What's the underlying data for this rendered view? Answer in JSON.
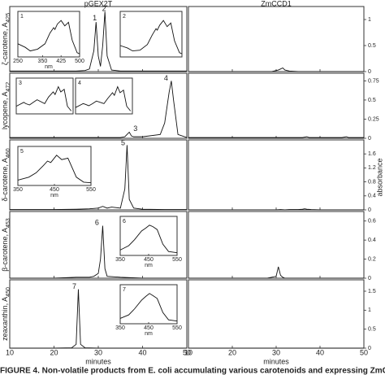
{
  "panels": [
    "pGEX2T",
    "ZmCCD1"
  ],
  "xlabel": "minutes",
  "y2label": "absorbance",
  "caption": "FIGURE 4. Non-volatile products from E. coli accumulating various carotenoids and expressing ZmCCD1",
  "chart_data": [
    {
      "type": "line",
      "ylabel": "ζ-carotene, A",
      "ylabel_sub": "425",
      "xlim": [
        10,
        50
      ],
      "xticks": [
        10,
        20,
        30,
        40,
        50
      ],
      "ylim": [
        0,
        1.25
      ],
      "yticks": [
        0,
        0.5,
        1
      ],
      "x": [
        10,
        15,
        20,
        25,
        27,
        28,
        29,
        29.5,
        30,
        30.5,
        31,
        31.5,
        32,
        33,
        35,
        40,
        45,
        50
      ],
      "series": [
        {
          "color": "#111111",
          "values": [
            0.01,
            0.01,
            0.01,
            0.01,
            0.02,
            0.05,
            0.4,
            0.95,
            0.3,
            0.1,
            0.5,
            1.15,
            0.3,
            0.03,
            0.01,
            0.01,
            0.01,
            0.01
          ]
        },
        {
          "color": "#111111",
          "values": [
            0,
            0,
            0,
            0,
            0,
            0,
            0,
            0.01,
            0.02,
            0.03,
            0.05,
            0.07,
            0.03,
            0.01,
            0,
            0,
            0,
            0
          ]
        }
      ],
      "peaks": [
        {
          "label": "1",
          "x": 29.2,
          "y": 1.02
        },
        {
          "label": "2",
          "x": 31.3,
          "y": 1.2
        }
      ],
      "insets": [
        {
          "label": "1",
          "xlim": [
            250,
            500
          ],
          "ylim": [
            0,
            1
          ],
          "xticks": [
            250,
            350,
            425,
            500
          ],
          "xlabel": "nm",
          "x": [
            250,
            280,
            300,
            330,
            360,
            380,
            395,
            400,
            410,
            425,
            440,
            455,
            470,
            490,
            500
          ],
          "values": [
            0.3,
            0.2,
            0.1,
            0.15,
            0.3,
            0.6,
            0.75,
            0.7,
            0.85,
            0.95,
            0.8,
            0.9,
            0.4,
            0.05,
            0.02
          ]
        },
        {
          "label": "2",
          "xlim": [
            250,
            500
          ],
          "ylim": [
            0,
            1
          ],
          "x": [
            250,
            280,
            300,
            330,
            360,
            380,
            395,
            400,
            410,
            425,
            440,
            455,
            470,
            490,
            500
          ],
          "values": [
            0.25,
            0.18,
            0.1,
            0.12,
            0.28,
            0.55,
            0.72,
            0.68,
            0.82,
            0.95,
            0.78,
            0.88,
            0.38,
            0.05,
            0.02
          ]
        }
      ]
    },
    {
      "type": "line",
      "ylabel": "lycopene, A",
      "ylabel_sub": "472",
      "xlim": [
        10,
        50
      ],
      "xticks": [
        10,
        20,
        30,
        40,
        50
      ],
      "ylim": [
        0,
        0.85
      ],
      "yticks": [
        0,
        0.25,
        0.5,
        0.75
      ],
      "x": [
        10,
        15,
        20,
        25,
        30,
        35,
        36,
        37,
        37.5,
        38,
        40,
        44,
        45,
        46,
        46.5,
        47,
        48,
        50
      ],
      "series": [
        {
          "color": "#111111",
          "values": [
            0.01,
            0.01,
            0.01,
            0.01,
            0.01,
            0.01,
            0.02,
            0.08,
            0.03,
            0.02,
            0.02,
            0.05,
            0.2,
            0.6,
            0.75,
            0.5,
            0.05,
            0.01
          ]
        },
        {
          "color": "#111111",
          "values": [
            0.01,
            0.01,
            0.01,
            0.01,
            0.01,
            0.01,
            0.01,
            0.02,
            0.01,
            0.01,
            0.01,
            0.01,
            0.01,
            0.02,
            0.01,
            0.01,
            0.01,
            0.01
          ]
        }
      ],
      "peaks": [
        {
          "label": "4",
          "x": 45.3,
          "y": 0.78
        },
        {
          "label": "3",
          "x": 38.4,
          "y": 0.12
        }
      ],
      "insets": [
        {
          "label": "3",
          "xlim": [
            250,
            550
          ],
          "ylim": [
            0,
            1
          ],
          "x": [
            250,
            290,
            300,
            320,
            340,
            360,
            400,
            420,
            445,
            455,
            472,
            485,
            503,
            520,
            540
          ],
          "values": [
            0.2,
            0.35,
            0.3,
            0.25,
            0.35,
            0.45,
            0.3,
            0.55,
            0.75,
            0.65,
            0.95,
            0.75,
            0.85,
            0.2,
            0.02
          ]
        },
        {
          "label": "4",
          "xlim": [
            250,
            550
          ],
          "ylim": [
            0,
            1
          ],
          "x": [
            250,
            290,
            300,
            320,
            340,
            360,
            400,
            420,
            445,
            455,
            472,
            485,
            503,
            520,
            540
          ],
          "values": [
            0.15,
            0.3,
            0.28,
            0.22,
            0.3,
            0.4,
            0.3,
            0.5,
            0.72,
            0.62,
            0.95,
            0.72,
            0.82,
            0.2,
            0.02
          ]
        }
      ]
    },
    {
      "type": "line",
      "ylabel": "δ-carotene, A",
      "ylabel_sub": "460",
      "xlim": [
        10,
        50
      ],
      "xticks": [
        10,
        20,
        30,
        40,
        50
      ],
      "ylim": [
        0,
        2
      ],
      "yticks": [
        0,
        0.4,
        0.8,
        1.2,
        1.6
      ],
      "x": [
        10,
        20,
        25,
        28,
        30,
        31,
        32,
        33,
        35,
        36,
        36.5,
        37,
        38,
        40,
        45,
        50
      ],
      "series": [
        {
          "color": "#111111",
          "values": [
            0.01,
            0.01,
            0.02,
            0.03,
            0.05,
            0.1,
            0.05,
            0.08,
            0.05,
            0.6,
            1.85,
            0.3,
            0.05,
            0.02,
            0.01,
            0.01
          ]
        },
        {
          "color": "#111111",
          "values": [
            0,
            0,
            0,
            0,
            0,
            0.01,
            0,
            0.01,
            0.01,
            0.02,
            0.03,
            0.02,
            0.01,
            0,
            0,
            0
          ]
        }
      ],
      "peaks": [
        {
          "label": "5",
          "x": 35.6,
          "y": 1.9
        }
      ],
      "insets": [
        {
          "label": "5",
          "xlim": [
            350,
            550
          ],
          "ylim": [
            0,
            1
          ],
          "xticks": [
            350,
            450,
            550
          ],
          "xlabel": "nm",
          "x": [
            350,
            380,
            400,
            420,
            431,
            440,
            456,
            470,
            487,
            510,
            530,
            550
          ],
          "values": [
            0.1,
            0.2,
            0.35,
            0.6,
            0.75,
            0.7,
            0.95,
            0.8,
            0.85,
            0.2,
            0.03,
            0.01
          ]
        }
      ]
    },
    {
      "type": "line",
      "ylabel": "β-carotene, A",
      "ylabel_sub": "453",
      "xlim": [
        10,
        50
      ],
      "xticks": [
        10,
        20,
        30,
        40,
        50
      ],
      "ylim": [
        0,
        0.7
      ],
      "yticks": [
        0,
        0.2,
        0.4,
        0.6
      ],
      "x": [
        10,
        20,
        25,
        28,
        29,
        30,
        30.5,
        31,
        31.5,
        32,
        35,
        40,
        50
      ],
      "series": [
        {
          "color": "#111111",
          "values": [
            0,
            0,
            0.01,
            0.01,
            0.02,
            0.05,
            0.2,
            0.55,
            0.1,
            0.02,
            0.01,
            0,
            0
          ]
        },
        {
          "color": "#111111",
          "values": [
            0,
            0,
            0,
            0,
            0.01,
            0.02,
            0.12,
            0.03,
            0.01,
            0,
            0,
            0,
            0
          ]
        }
      ],
      "peaks": [
        {
          "label": "6",
          "x": 29.7,
          "y": 0.58
        }
      ],
      "insets": [
        {
          "label": "6",
          "xlim": [
            350,
            550
          ],
          "ylim": [
            0,
            1
          ],
          "xticks": [
            350,
            450,
            550
          ],
          "xlabel": "nm",
          "x": [
            350,
            380,
            400,
            425,
            440,
            453,
            465,
            480,
            500,
            520,
            550
          ],
          "values": [
            0.1,
            0.25,
            0.45,
            0.75,
            0.85,
            0.95,
            0.9,
            0.8,
            0.3,
            0.05,
            0.01
          ]
        }
      ]
    },
    {
      "type": "line",
      "ylabel": "zeaxanthin, A",
      "ylabel_sub": "450",
      "xlim": [
        10,
        50
      ],
      "xticks": [
        10,
        20,
        30,
        40,
        50
      ],
      "ylim": [
        0,
        1.8
      ],
      "yticks": [
        0,
        0.5,
        1,
        1.5
      ],
      "x": [
        10,
        20,
        24,
        25,
        25.5,
        26,
        27,
        30,
        40,
        50
      ],
      "series": [
        {
          "color": "#111111",
          "values": [
            0,
            0,
            0.01,
            0.1,
            1.55,
            0.1,
            0.01,
            0,
            0,
            0
          ]
        },
        {
          "color": "#111111",
          "values": [
            0,
            0,
            0,
            0,
            0,
            0,
            0,
            0,
            0,
            0
          ]
        }
      ],
      "peaks": [
        {
          "label": "7",
          "x": 24.6,
          "y": 1.62
        }
      ],
      "insets": [
        {
          "label": "7",
          "xlim": [
            350,
            550
          ],
          "ylim": [
            0,
            1
          ],
          "xticks": [
            350,
            450,
            550
          ],
          "xlabel": "nm",
          "x": [
            350,
            380,
            400,
            425,
            440,
            453,
            465,
            480,
            500,
            520,
            550
          ],
          "values": [
            0.1,
            0.22,
            0.42,
            0.72,
            0.85,
            0.95,
            0.88,
            0.78,
            0.3,
            0.05,
            0.01
          ]
        }
      ]
    }
  ]
}
